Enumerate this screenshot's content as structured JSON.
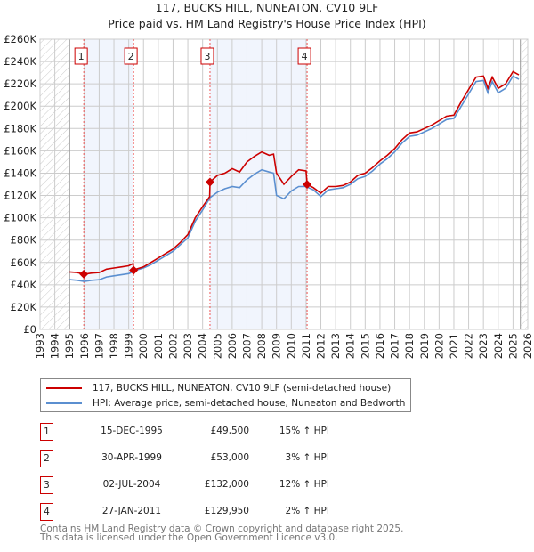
{
  "chart_data": {
    "type": "line",
    "title": "117, BUCKS HILL, NUNEATON, CV10 9LF",
    "subtitle": "Price paid vs. HM Land Registry's House Price Index (HPI)",
    "xlim": [
      1993,
      2026
    ],
    "ylim": [
      0,
      260000
    ],
    "y_ticks": [
      0,
      20000,
      40000,
      60000,
      80000,
      100000,
      120000,
      140000,
      160000,
      180000,
      200000,
      220000,
      240000,
      260000
    ],
    "y_tick_labels": [
      "£0",
      "£20K",
      "£40K",
      "£60K",
      "£80K",
      "£100K",
      "£120K",
      "£140K",
      "£160K",
      "£180K",
      "£200K",
      "£220K",
      "£240K",
      "£260K"
    ],
    "x_tick_labels": [
      "1993",
      "1994",
      "1995",
      "1996",
      "1997",
      "1998",
      "1999",
      "2000",
      "2001",
      "2002",
      "2003",
      "2004",
      "2005",
      "2006",
      "2007",
      "2008",
      "2009",
      "2010",
      "2011",
      "2012",
      "2013",
      "2014",
      "2015",
      "2016",
      "2017",
      "2018",
      "2019",
      "2020",
      "2021",
      "2022",
      "2023",
      "2024",
      "2025",
      "2026"
    ],
    "grid": true,
    "hatched_ranges": [
      [
        1993,
        1995
      ],
      [
        2025.5,
        2026
      ]
    ],
    "shaded_ranges": [
      [
        1995.96,
        1999.33
      ],
      [
        2004.5,
        2011.07
      ]
    ],
    "series": [
      {
        "name": "117, BUCKS HILL, NUNEATON, CV10 9LF (semi-detached house)",
        "color": "#cc0000",
        "x": [
          1995,
          1995.5,
          1996,
          1996.5,
          1997,
          1997.5,
          1998,
          1998.5,
          1999,
          1999.3,
          1999.33,
          1999.5,
          2000,
          2000.5,
          2001,
          2001.5,
          2002,
          2002.5,
          2003,
          2003.5,
          2004,
          2004.48,
          2004.5,
          2005,
          2005.5,
          2006,
          2006.5,
          2007,
          2007.5,
          2008,
          2008.5,
          2008.8,
          2009,
          2009.5,
          2010,
          2010.5,
          2011,
          2011.07,
          2011.5,
          2012,
          2012.5,
          2013,
          2013.5,
          2014,
          2014.5,
          2015,
          2015.5,
          2016,
          2016.5,
          2017,
          2017.5,
          2018,
          2018.5,
          2019,
          2019.5,
          2020,
          2020.5,
          2021,
          2021.5,
          2022,
          2022.5,
          2023,
          2023.3,
          2023.6,
          2024,
          2024.5,
          2025,
          2025.4
        ],
        "y": [
          51500,
          51000,
          49500,
          50500,
          51000,
          54000,
          55000,
          56000,
          57000,
          59000,
          53000,
          54000,
          56000,
          60000,
          64000,
          68000,
          72000,
          78000,
          85000,
          100000,
          110000,
          119000,
          132000,
          138000,
          140000,
          144000,
          141000,
          150000,
          155000,
          159000,
          156000,
          157000,
          140000,
          130000,
          137000,
          143000,
          142000,
          130000,
          127000,
          122000,
          128000,
          128000,
          129000,
          132000,
          138000,
          140000,
          145000,
          151000,
          156000,
          162000,
          170000,
          176000,
          177000,
          180000,
          183000,
          187000,
          191000,
          192000,
          204000,
          215000,
          226000,
          227000,
          216000,
          226000,
          216000,
          220000,
          231000,
          228000
        ]
      },
      {
        "name": "HPI: Average price, semi-detached house, Nuneaton and Bedworth",
        "color": "#5b8fd0",
        "x": [
          1995,
          1995.5,
          1996,
          1996.5,
          1997,
          1997.5,
          1998,
          1998.5,
          1999,
          1999.5,
          2000,
          2000.5,
          2001,
          2001.5,
          2002,
          2002.5,
          2003,
          2003.5,
          2004,
          2004.5,
          2005,
          2005.5,
          2006,
          2006.5,
          2007,
          2007.5,
          2008,
          2008.5,
          2008.8,
          2009,
          2009.5,
          2010,
          2010.5,
          2011,
          2011.5,
          2012,
          2012.5,
          2013,
          2013.5,
          2014,
          2014.5,
          2015,
          2015.5,
          2016,
          2016.5,
          2017,
          2017.5,
          2018,
          2018.5,
          2019,
          2019.5,
          2020,
          2020.5,
          2021,
          2021.5,
          2022,
          2022.5,
          2023,
          2023.3,
          2023.6,
          2024,
          2024.5,
          2025,
          2025.4
        ],
        "y": [
          44600,
          44000,
          43000,
          44000,
          44500,
          47000,
          48000,
          49000,
          50000,
          53000,
          55000,
          58000,
          62000,
          66000,
          70000,
          76000,
          82000,
          97000,
          107000,
          118000,
          123000,
          126000,
          128000,
          127000,
          134000,
          139000,
          143000,
          141000,
          140000,
          120000,
          117000,
          124000,
          128000,
          128000,
          125000,
          119000,
          125000,
          126000,
          127000,
          130000,
          135000,
          137000,
          142000,
          148000,
          153000,
          159000,
          167000,
          173000,
          174000,
          177000,
          180000,
          184000,
          188000,
          189000,
          200000,
          211000,
          222000,
          223000,
          212000,
          222000,
          212000,
          216000,
          227000,
          224000
        ]
      }
    ],
    "sales": [
      {
        "label": "1",
        "x": 1995.96,
        "y": 49500
      },
      {
        "label": "2",
        "x": 1999.33,
        "y": 53000
      },
      {
        "label": "3",
        "x": 2004.5,
        "y": 132000
      },
      {
        "label": "4",
        "x": 2011.07,
        "y": 129950
      }
    ]
  },
  "legend": {
    "property": "117, BUCKS HILL, NUNEATON, CV10 9LF (semi-detached house)",
    "hpi": "HPI: Average price, semi-detached house, Nuneaton and Bedworth"
  },
  "transactions": [
    {
      "num": "1",
      "date": "15-DEC-1995",
      "price": "£49,500",
      "hpi": "15% ↑ HPI"
    },
    {
      "num": "2",
      "date": "30-APR-1999",
      "price": "£53,000",
      "hpi": "3% ↑ HPI"
    },
    {
      "num": "3",
      "date": "02-JUL-2004",
      "price": "£132,000",
      "hpi": "12% ↑ HPI"
    },
    {
      "num": "4",
      "date": "27-JAN-2011",
      "price": "£129,950",
      "hpi": "2% ↑ HPI"
    }
  ],
  "footer": {
    "line1": "Contains HM Land Registry data © Crown copyright and database right 2025.",
    "line2": "This data is licensed under the Open Government Licence v3.0."
  }
}
